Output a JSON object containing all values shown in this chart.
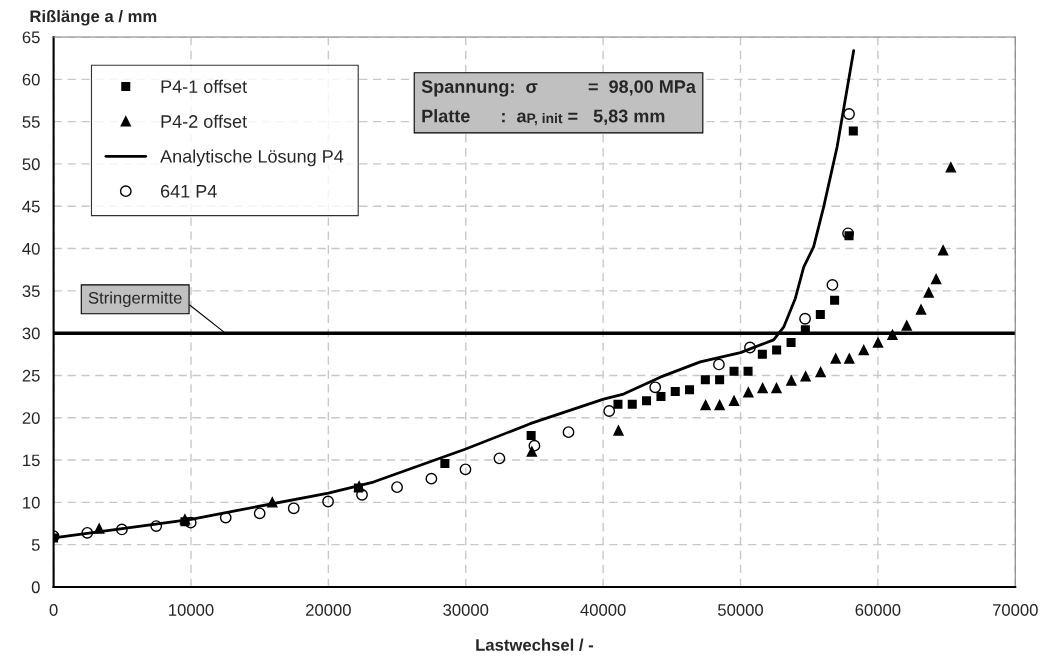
{
  "chart_data": {
    "type": "scatter",
    "xlabel": "Lastwechsel / -",
    "ylabel": "Rißlänge a / mm",
    "xlim": [
      0,
      70000
    ],
    "xticks": [
      0,
      10000,
      20000,
      30000,
      40000,
      50000,
      60000,
      70000
    ],
    "ylim": [
      0,
      65
    ],
    "yticks": [
      0,
      5,
      10,
      15,
      20,
      25,
      30,
      35,
      40,
      45,
      50,
      55,
      60,
      65
    ],
    "grid": true,
    "legend": "top left",
    "annotations": [
      "Spannung:  σ          =  98,00 MPa",
      "Platte      :  a$_{P, init}$ =   5,83 mm"
    ],
    "ref_lines": [
      {
        "axis": "y",
        "value": 30,
        "label": "Stringermitte",
        "color": "#000000"
      }
    ],
    "series": [
      {
        "name": "P4-1 offset",
        "marker": "square",
        "color": "#000000",
        "x": [
          0,
          9560,
          22190,
          28480,
          34760,
          41080,
          42120,
          43160,
          44210,
          45250,
          46290,
          47440,
          48480,
          49530,
          50550,
          51590,
          52630,
          53680,
          54720,
          55810,
          56850,
          57900,
          58210
        ],
        "values": [
          5.8,
          7.7,
          11.7,
          14.6,
          17.9,
          21.6,
          21.6,
          22.0,
          22.5,
          23.1,
          23.3,
          24.5,
          24.5,
          25.5,
          25.5,
          27.5,
          28.0,
          28.9,
          30.4,
          32.2,
          33.9,
          41.5,
          53.9
        ]
      },
      {
        "name": "P4-2 offset",
        "marker": "triangle",
        "color": "#000000",
        "x": [
          3320,
          9560,
          15920,
          22240,
          34810,
          41120,
          47460,
          48480,
          49530,
          50570,
          51610,
          52620,
          53700,
          54740,
          55830,
          56930,
          57920,
          58970,
          60010,
          61060,
          62100,
          63140,
          63700,
          64240,
          64750,
          65310
        ],
        "values": [
          6.9,
          8.0,
          10.0,
          11.9,
          16.0,
          18.5,
          21.5,
          21.5,
          22.0,
          23.0,
          23.5,
          23.5,
          24.4,
          24.9,
          25.4,
          27.0,
          27.0,
          28.0,
          28.9,
          29.8,
          30.9,
          32.8,
          34.8,
          36.4,
          39.8,
          49.6
        ]
      },
      {
        "name": "Analytische Lösung P4",
        "type": "line",
        "marker": "none",
        "line_style": "solid",
        "color": "#000000",
        "x": [
          0,
          10000,
          20000,
          23280,
          30000,
          34690,
          40030,
          41490,
          44160,
          47070,
          50000,
          52410,
          53140,
          53990,
          54600,
          55320,
          56050,
          57030,
          58240
        ],
        "values": [
          5.8,
          8.0,
          11.1,
          12.4,
          16.3,
          19.3,
          22.2,
          22.8,
          24.8,
          26.6,
          27.7,
          29.2,
          30.7,
          34.1,
          37.8,
          40.2,
          44.9,
          52.0,
          63.4
        ]
      },
      {
        "name": "641 P4",
        "marker": "circle",
        "color": "#000000",
        "x": [
          0,
          2450,
          4970,
          7470,
          9980,
          12530,
          15000,
          17480,
          19980,
          22450,
          25000,
          27500,
          29980,
          32450,
          35000,
          37480,
          40440,
          43790,
          48430,
          50690,
          54700,
          56690,
          57830,
          57900
        ],
        "values": [
          6.0,
          6.4,
          6.8,
          7.2,
          7.6,
          8.2,
          8.7,
          9.3,
          10.1,
          10.9,
          11.8,
          12.8,
          13.9,
          15.2,
          16.7,
          18.3,
          20.8,
          23.6,
          26.3,
          28.3,
          31.7,
          35.7,
          41.8,
          55.9
        ]
      }
    ]
  }
}
